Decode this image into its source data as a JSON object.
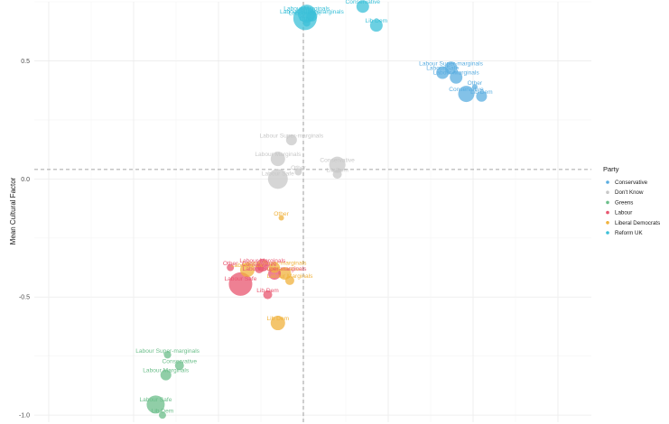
{
  "chart_data": {
    "type": "scatter",
    "title": "",
    "xlabel": "",
    "ylabel": "Mean Cultural Factor",
    "y_ticks": [
      0.5,
      0,
      -0.5,
      -1
    ],
    "y_tick_labels": [
      "0.5",
      "0.0",
      "-0.5",
      "-1.0"
    ],
    "ylim": [
      -1.03,
      0.75
    ],
    "xlim": [
      -1.0,
      1.0
    ],
    "x_ref": 0.0,
    "y_ref": 0.04,
    "grid": true,
    "legend": {
      "title": "Party",
      "position": "right",
      "entries": [
        {
          "name": "Conservative",
          "color": "#5AADE0"
        },
        {
          "name": "Don't Know",
          "color": "#C8C8C8"
        },
        {
          "name": "Greens",
          "color": "#6BBE8A"
        },
        {
          "name": "Labour",
          "color": "#E8556F"
        },
        {
          "name": "Liberal Democrats",
          "color": "#F0B23C"
        },
        {
          "name": "Reform UK",
          "color": "#3BC0D8"
        }
      ]
    },
    "series": [
      {
        "name": "Reform UK",
        "color": "#3BC0D8",
        "points": [
          {
            "label": "Labour Marginals",
            "x": 0.02,
            "y": 0.7,
            "size": 10
          },
          {
            "label": "Labour Safe",
            "x": 0.01,
            "y": 0.68,
            "size": 13
          },
          {
            "label": "Conservative",
            "x": 0.35,
            "y": 0.73,
            "size": 7
          },
          {
            "label": "Labour Super-marginals",
            "x": 0.05,
            "y": 0.69,
            "size": 6
          },
          {
            "label": "Other",
            "x": 0.02,
            "y": 0.66,
            "size": 4
          },
          {
            "label": "Lib Dem",
            "x": 0.43,
            "y": 0.65,
            "size": 7
          }
        ]
      },
      {
        "name": "Conservative",
        "color": "#5AADE0",
        "points": [
          {
            "label": "Labour Super-marginals",
            "x": 0.87,
            "y": 0.47,
            "size": 7
          },
          {
            "label": "Labour Safe",
            "x": 0.82,
            "y": 0.45,
            "size": 7
          },
          {
            "label": "Labour Marginals",
            "x": 0.9,
            "y": 0.43,
            "size": 7
          },
          {
            "label": "Other",
            "x": 1.01,
            "y": 0.39,
            "size": 3
          },
          {
            "label": "Conservative",
            "x": 0.96,
            "y": 0.36,
            "size": 9
          },
          {
            "label": "Lib Dem",
            "x": 1.05,
            "y": 0.35,
            "size": 6
          }
        ]
      },
      {
        "name": "Don't Know",
        "color": "#C8C8C8",
        "points": [
          {
            "label": "Labour Super-marginals",
            "x": -0.07,
            "y": 0.165,
            "size": 6
          },
          {
            "label": "Labour Marginals",
            "x": -0.15,
            "y": 0.085,
            "size": 8
          },
          {
            "label": "Conservative",
            "x": 0.2,
            "y": 0.06,
            "size": 9
          },
          {
            "label": "Other",
            "x": -0.03,
            "y": 0.03,
            "size": 4
          },
          {
            "label": "Labour Safe",
            "x": -0.15,
            "y": 0.0,
            "size": 11
          },
          {
            "label": "Lib Dem",
            "x": 0.2,
            "y": 0.02,
            "size": 5
          }
        ]
      },
      {
        "name": "Liberal Democrats",
        "color": "#F0B23C",
        "points": [
          {
            "label": "Other",
            "x": -0.13,
            "y": -0.165,
            "size": 3
          },
          {
            "label": "Labour Super-marginals",
            "x": -0.17,
            "y": -0.375,
            "size": 6
          },
          {
            "label": "Labour Safe",
            "x": -0.33,
            "y": -0.385,
            "size": 8
          },
          {
            "label": "Conservative",
            "x": -0.11,
            "y": -0.4,
            "size": 7
          },
          {
            "label": "Labour Marginals",
            "x": -0.08,
            "y": -0.43,
            "size": 5
          },
          {
            "label": "Lib Dem",
            "x": -0.15,
            "y": -0.61,
            "size": 8
          }
        ]
      },
      {
        "name": "Labour",
        "color": "#E8556F",
        "points": [
          {
            "label": "Labour Marginals",
            "x": -0.24,
            "y": -0.365,
            "size": 7
          },
          {
            "label": "Other",
            "x": -0.43,
            "y": -0.375,
            "size": 4
          },
          {
            "label": "Conservative",
            "x": -0.26,
            "y": -0.38,
            "size": 5
          },
          {
            "label": "Labour Super-marginals",
            "x": -0.17,
            "y": -0.4,
            "size": 7
          },
          {
            "label": "Labour Safe",
            "x": -0.37,
            "y": -0.445,
            "size": 13
          },
          {
            "label": "Lib Dem",
            "x": -0.21,
            "y": -0.49,
            "size": 5
          }
        ]
      },
      {
        "name": "Greens",
        "color": "#6BBE8A",
        "points": [
          {
            "label": "Labour Super-marginals",
            "x": -0.8,
            "y": -0.745,
            "size": 4
          },
          {
            "label": "Conservative",
            "x": -0.73,
            "y": -0.79,
            "size": 5
          },
          {
            "label": "Labour Marginals",
            "x": -0.81,
            "y": -0.83,
            "size": 6
          },
          {
            "label": "Labour Safe",
            "x": -0.87,
            "y": -0.955,
            "size": 10
          },
          {
            "label": "Lib Dem",
            "x": -0.83,
            "y": -1.0,
            "size": 4
          }
        ]
      }
    ]
  }
}
